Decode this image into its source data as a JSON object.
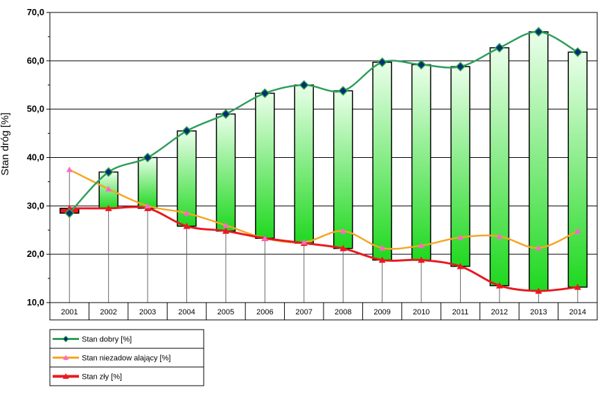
{
  "chart_data": {
    "type": "line",
    "ylabel": "Stan dróg [%]",
    "ylim": [
      10,
      70
    ],
    "yticks": [
      "10,0",
      "20,0",
      "30,0",
      "40,0",
      "50,0",
      "60,0",
      "70,0"
    ],
    "categories": [
      "2001",
      "2002",
      "2003",
      "2004",
      "2005",
      "2006",
      "2007",
      "2008",
      "2009",
      "2010",
      "2011",
      "2012",
      "2013",
      "2014"
    ],
    "series": [
      {
        "name": "Stan dobry [%]",
        "color": "#2e9e5a",
        "marker": "diamond",
        "values": [
          28.5,
          37.0,
          40.0,
          45.5,
          49.0,
          53.3,
          55.0,
          53.8,
          59.7,
          59.2,
          58.8,
          62.7,
          66.0,
          61.8
        ]
      },
      {
        "name": "Stan niezadow alający [%]",
        "color": "#f5a623",
        "marker": "triangle",
        "values": [
          37.5,
          33.5,
          30.0,
          28.5,
          26.0,
          23.3,
          22.5,
          24.8,
          21.3,
          21.8,
          23.5,
          23.7,
          21.3,
          24.8
        ]
      },
      {
        "name": "Stan zły  [%]",
        "color": "#e8191f",
        "marker": "triangle",
        "values": [
          29.5,
          29.5,
          29.5,
          25.8,
          24.8,
          23.3,
          22.3,
          21.2,
          18.8,
          18.8,
          17.5,
          13.5,
          12.4,
          13.2
        ]
      }
    ],
    "legend_position": "bottom-left",
    "grid": true
  }
}
